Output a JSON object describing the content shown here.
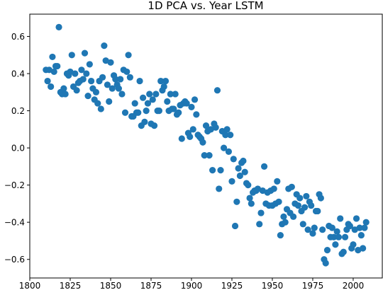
{
  "chart_data": {
    "type": "scatter",
    "title": "1D PCA vs. Year LSTM",
    "xlabel": "",
    "ylabel": "",
    "xlim": [
      1800,
      2018
    ],
    "ylim": [
      -0.7,
      0.72
    ],
    "x_ticks": [
      1800,
      1825,
      1850,
      1875,
      1900,
      1925,
      1950,
      1975,
      2000
    ],
    "y_ticks": [
      -0.6,
      -0.4,
      -0.2,
      0.0,
      0.2,
      0.4,
      0.6
    ],
    "x_tick_labels": [
      "1800",
      "1825",
      "1850",
      "1875",
      "1900",
      "1925",
      "1950",
      "1975",
      "2000"
    ],
    "y_tick_labels": [
      "−0.6",
      "−0.4",
      "−0.2",
      "0.0",
      "0.2",
      "0.4",
      "0.6"
    ],
    "grid": false,
    "marker_color": "#1f77b4",
    "series": [
      {
        "points": [
          [
            1810,
            0.42
          ],
          [
            1811,
            0.36
          ],
          [
            1812,
            0.42
          ],
          [
            1813,
            0.33
          ],
          [
            1814,
            0.49
          ],
          [
            1815,
            0.41
          ],
          [
            1816,
            0.44
          ],
          [
            1817,
            0.44
          ],
          [
            1818,
            0.65
          ],
          [
            1819,
            0.3
          ],
          [
            1820,
            0.29
          ],
          [
            1821,
            0.32
          ],
          [
            1822,
            0.29
          ],
          [
            1823,
            0.4
          ],
          [
            1824,
            0.39
          ],
          [
            1825,
            0.41
          ],
          [
            1826,
            0.5
          ],
          [
            1827,
            0.33
          ],
          [
            1828,
            0.4
          ],
          [
            1829,
            0.31
          ],
          [
            1830,
            0.35
          ],
          [
            1831,
            0.36
          ],
          [
            1832,
            0.42
          ],
          [
            1833,
            0.37
          ],
          [
            1834,
            0.51
          ],
          [
            1835,
            0.4
          ],
          [
            1836,
            0.28
          ],
          [
            1837,
            0.45
          ],
          [
            1838,
            0.36
          ],
          [
            1839,
            0.32
          ],
          [
            1840,
            0.26
          ],
          [
            1841,
            0.3
          ],
          [
            1842,
            0.24
          ],
          [
            1843,
            0.36
          ],
          [
            1844,
            0.21
          ],
          [
            1845,
            0.38
          ],
          [
            1846,
            0.55
          ],
          [
            1847,
            0.47
          ],
          [
            1848,
            0.34
          ],
          [
            1849,
            0.25
          ],
          [
            1850,
            0.46
          ],
          [
            1851,
            0.32
          ],
          [
            1852,
            0.39
          ],
          [
            1853,
            0.37
          ],
          [
            1854,
            0.34
          ],
          [
            1855,
            0.32
          ],
          [
            1856,
            0.37
          ],
          [
            1857,
            0.29
          ],
          [
            1858,
            0.42
          ],
          [
            1859,
            0.19
          ],
          [
            1860,
            0.41
          ],
          [
            1861,
            0.5
          ],
          [
            1862,
            0.38
          ],
          [
            1863,
            0.17
          ],
          [
            1864,
            0.17
          ],
          [
            1865,
            0.24
          ],
          [
            1866,
            0.19
          ],
          [
            1867,
            0.19
          ],
          [
            1868,
            0.36
          ],
          [
            1869,
            0.12
          ],
          [
            1870,
            0.27
          ],
          [
            1871,
            0.14
          ],
          [
            1872,
            0.2
          ],
          [
            1873,
            0.24
          ],
          [
            1874,
            0.29
          ],
          [
            1875,
            0.13
          ],
          [
            1876,
            0.26
          ],
          [
            1877,
            0.12
          ],
          [
            1878,
            0.29
          ],
          [
            1879,
            0.2
          ],
          [
            1880,
            0.2
          ],
          [
            1881,
            0.36
          ],
          [
            1882,
            0.31
          ],
          [
            1883,
            0.33
          ],
          [
            1884,
            0.36
          ],
          [
            1885,
            0.25
          ],
          [
            1886,
            0.2
          ],
          [
            1887,
            0.29
          ],
          [
            1888,
            0.21
          ],
          [
            1889,
            0.21
          ],
          [
            1890,
            0.29
          ],
          [
            1891,
            0.18
          ],
          [
            1892,
            0.19
          ],
          [
            1893,
            0.23
          ],
          [
            1894,
            0.05
          ],
          [
            1895,
            0.24
          ],
          [
            1896,
            0.25
          ],
          [
            1897,
            0.24
          ],
          [
            1898,
            0.08
          ],
          [
            1899,
            0.06
          ],
          [
            1900,
            0.22
          ],
          [
            1901,
            0.1
          ],
          [
            1902,
            0.26
          ],
          [
            1903,
            0.18
          ],
          [
            1904,
            0.07
          ],
          [
            1905,
            0.06
          ],
          [
            1906,
            0.05
          ],
          [
            1907,
            0.03
          ],
          [
            1908,
            -0.04
          ],
          [
            1909,
            0.12
          ],
          [
            1910,
            0.09
          ],
          [
            1911,
            -0.04
          ],
          [
            1912,
            0.1
          ],
          [
            1913,
            -0.12
          ],
          [
            1914,
            0.13
          ],
          [
            1915,
            0.11
          ],
          [
            1916,
            0.31
          ],
          [
            1917,
            -0.22
          ],
          [
            1918,
            -0.12
          ],
          [
            1919,
            0.09
          ],
          [
            1920,
            0.0
          ],
          [
            1921,
            0.07
          ],
          [
            1922,
            0.1
          ],
          [
            1923,
            -0.02
          ],
          [
            1924,
            0.07
          ],
          [
            1925,
            -0.18
          ],
          [
            1926,
            -0.06
          ],
          [
            1927,
            -0.42
          ],
          [
            1928,
            -0.29
          ],
          [
            1929,
            -0.11
          ],
          [
            1930,
            -0.15
          ],
          [
            1931,
            -0.08
          ],
          [
            1932,
            -0.07
          ],
          [
            1933,
            -0.13
          ],
          [
            1934,
            -0.19
          ],
          [
            1935,
            -0.2
          ],
          [
            1936,
            -0.27
          ],
          [
            1937,
            -0.3
          ],
          [
            1938,
            -0.24
          ],
          [
            1939,
            -0.23
          ],
          [
            1940,
            -0.23
          ],
          [
            1941,
            -0.22
          ],
          [
            1942,
            -0.41
          ],
          [
            1943,
            -0.35
          ],
          [
            1944,
            -0.23
          ],
          [
            1945,
            -0.1
          ],
          [
            1946,
            -0.3
          ],
          [
            1947,
            -0.24
          ],
          [
            1948,
            -0.31
          ],
          [
            1949,
            -0.23
          ],
          [
            1950,
            -0.31
          ],
          [
            1951,
            -0.22
          ],
          [
            1952,
            -0.3
          ],
          [
            1953,
            -0.18
          ],
          [
            1954,
            -0.29
          ],
          [
            1955,
            -0.47
          ],
          [
            1956,
            -0.41
          ],
          [
            1957,
            -0.37
          ],
          [
            1958,
            -0.4
          ],
          [
            1959,
            -0.33
          ],
          [
            1960,
            -0.22
          ],
          [
            1961,
            -0.35
          ],
          [
            1962,
            -0.21
          ],
          [
            1963,
            -0.37
          ],
          [
            1964,
            -0.3
          ],
          [
            1965,
            -0.25
          ],
          [
            1966,
            -0.31
          ],
          [
            1967,
            -0.27
          ],
          [
            1968,
            -0.34
          ],
          [
            1969,
            -0.41
          ],
          [
            1970,
            -0.32
          ],
          [
            1971,
            -0.26
          ],
          [
            1972,
            -0.44
          ],
          [
            1973,
            -0.29
          ],
          [
            1974,
            -0.31
          ],
          [
            1975,
            -0.46
          ],
          [
            1976,
            -0.43
          ],
          [
            1977,
            -0.34
          ],
          [
            1978,
            -0.34
          ],
          [
            1979,
            -0.25
          ],
          [
            1980,
            -0.27
          ],
          [
            1981,
            -0.44
          ],
          [
            1982,
            -0.6
          ],
          [
            1983,
            -0.62
          ],
          [
            1984,
            -0.55
          ],
          [
            1985,
            -0.42
          ],
          [
            1986,
            -0.48
          ],
          [
            1987,
            -0.43
          ],
          [
            1988,
            -0.48
          ],
          [
            1989,
            -0.52
          ],
          [
            1990,
            -0.45
          ],
          [
            1991,
            -0.48
          ],
          [
            1992,
            -0.38
          ],
          [
            1993,
            -0.57
          ],
          [
            1994,
            -0.56
          ],
          [
            1995,
            -0.48
          ],
          [
            1996,
            -0.44
          ],
          [
            1997,
            -0.41
          ],
          [
            1998,
            -0.42
          ],
          [
            1999,
            -0.54
          ],
          [
            2000,
            -0.52
          ],
          [
            2001,
            -0.44
          ],
          [
            2002,
            -0.38
          ],
          [
            2003,
            -0.55
          ],
          [
            2004,
            -0.43
          ],
          [
            2005,
            -0.47
          ],
          [
            2006,
            -0.54
          ],
          [
            2007,
            -0.43
          ],
          [
            2008,
            -0.4
          ]
        ]
      }
    ]
  }
}
